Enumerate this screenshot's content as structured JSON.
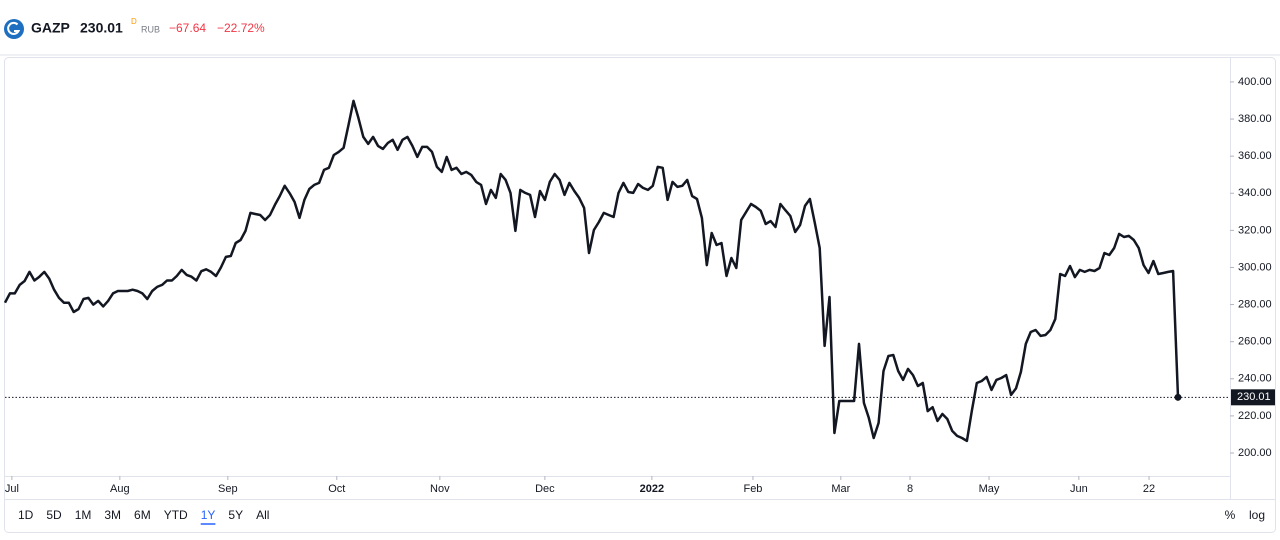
{
  "header": {
    "symbol": "GAZP",
    "price": "230.01",
    "interval": "D",
    "currency": "RUB",
    "change": "−67.64",
    "change_pct": "−22.72%"
  },
  "chart_data": {
    "type": "line",
    "color": "#131722",
    "values": [
      281,
      286,
      286,
      290.6,
      292.7,
      297.6,
      293,
      295,
      297.6,
      294,
      288,
      283.6,
      281,
      281,
      276,
      277.6,
      283,
      283.6,
      280,
      282,
      279,
      282,
      286,
      287.3,
      287.3,
      287.3,
      288,
      287.3,
      286,
      283,
      287.3,
      289.5,
      290.6,
      293,
      293,
      295.4,
      298.7,
      296,
      295,
      293,
      298,
      299,
      297.6,
      295.4,
      300,
      305.7,
      306.2,
      313.2,
      314.8,
      319.7,
      329.4,
      328.8,
      328.3,
      325.6,
      328.3,
      333.7,
      338.5,
      344,
      340,
      335.3,
      326.7,
      336.4,
      342.3,
      344.5,
      345.6,
      352.6,
      353.7,
      360.6,
      362.3,
      364.5,
      376.8,
      389.8,
      380.6,
      370.4,
      366.6,
      370.4,
      365.5,
      363.9,
      367.1,
      368.8,
      363.4,
      368.8,
      370.4,
      365.5,
      359.6,
      365,
      365,
      362.3,
      354.2,
      351.5,
      359.6,
      352.6,
      353.7,
      350.4,
      351.5,
      349.9,
      346.1,
      344.5,
      334.2,
      341.8,
      337.5,
      350.4,
      347.2,
      340.2,
      319.7,
      341.8,
      340.2,
      339.1,
      327.2,
      341.2,
      336.4,
      346.1,
      350.4,
      347.2,
      339.1,
      345.6,
      341.2,
      337.5,
      332.1,
      307.8,
      320.2,
      324.5,
      329.4,
      328.3,
      327.2,
      340.2,
      345.6,
      340.7,
      340.2,
      345,
      342.9,
      341.8,
      344,
      354.2,
      353.7,
      336.4,
      346.1,
      343.4,
      344,
      347.2,
      338.5,
      336.9,
      326.7,
      301.3,
      318.6,
      312.1,
      313.2,
      295.4,
      305.1,
      299.7,
      325.6,
      329.9,
      334.2,
      332.6,
      330.5,
      323.4,
      325,
      321.8,
      334.2,
      330.9,
      327.8,
      319.1,
      322.9,
      333.2,
      336.9,
      324,
      310.5,
      257.7,
      284.1,
      210.8,
      228,
      228,
      228,
      228,
      258.8,
      227,
      218.9,
      208.1,
      216.2,
      244.2,
      252.3,
      252.8,
      244.2,
      239.4,
      245.3,
      242,
      236.1,
      237.7,
      222.6,
      224.7,
      217.3,
      221,
      218.3,
      211.9,
      209.2,
      208.1,
      206.5,
      222.6,
      237.7,
      238.8,
      241,
      234,
      239.4,
      240.4,
      242,
      231.3,
      234.8,
      243.7,
      258.8,
      265.2,
      266.3,
      263.1,
      263.6,
      266.3,
      272.2,
      296.5,
      295.4,
      300.8,
      294.8,
      298.7,
      297.6,
      298.7,
      298.1,
      299.7,
      307.8,
      306.7,
      310.5,
      318.1,
      316.4,
      317,
      314.8,
      310.5,
      301.3,
      297,
      303.5,
      296.5,
      297,
      297.6,
      298.1,
      230.01
    ],
    "xlim": [
      0,
      249.6
    ],
    "xticks": [
      {
        "value": 1.4,
        "label": "Jul"
      },
      {
        "value": 23.4,
        "label": "Aug"
      },
      {
        "value": 45.4,
        "label": "Sep"
      },
      {
        "value": 67.6,
        "label": "Oct"
      },
      {
        "value": 88.6,
        "label": "Nov"
      },
      {
        "value": 110,
        "label": "Dec"
      },
      {
        "value": 131.8,
        "label": "2022"
      },
      {
        "value": 152.4,
        "label": "Feb"
      },
      {
        "value": 170.3,
        "label": "Mar"
      },
      {
        "value": 184.4,
        "label": "8"
      },
      {
        "value": 200.5,
        "label": "May"
      },
      {
        "value": 218.8,
        "label": "Jun"
      },
      {
        "value": 233.1,
        "label": "22"
      }
    ],
    "ylim": [
      187.6,
      412.9
    ],
    "yticks": [
      {
        "value": 200,
        "label": "200.00"
      },
      {
        "value": 220,
        "label": "220.00"
      },
      {
        "value": 240,
        "label": "240.00"
      },
      {
        "value": 260,
        "label": "260.00"
      },
      {
        "value": 280,
        "label": "280.00"
      },
      {
        "value": 300,
        "label": "300.00"
      },
      {
        "value": 320,
        "label": "320.00"
      },
      {
        "value": 340,
        "label": "340.00"
      },
      {
        "value": 360,
        "label": "360.00"
      },
      {
        "value": 380,
        "label": "380.00"
      },
      {
        "value": 400,
        "label": "400.00"
      }
    ]
  },
  "toolbar": {
    "ranges": [
      "1D",
      "5D",
      "1M",
      "3M",
      "6M",
      "YTD",
      "1Y",
      "5Y",
      "All"
    ],
    "active": "1Y",
    "percent": "%",
    "log": "log"
  }
}
